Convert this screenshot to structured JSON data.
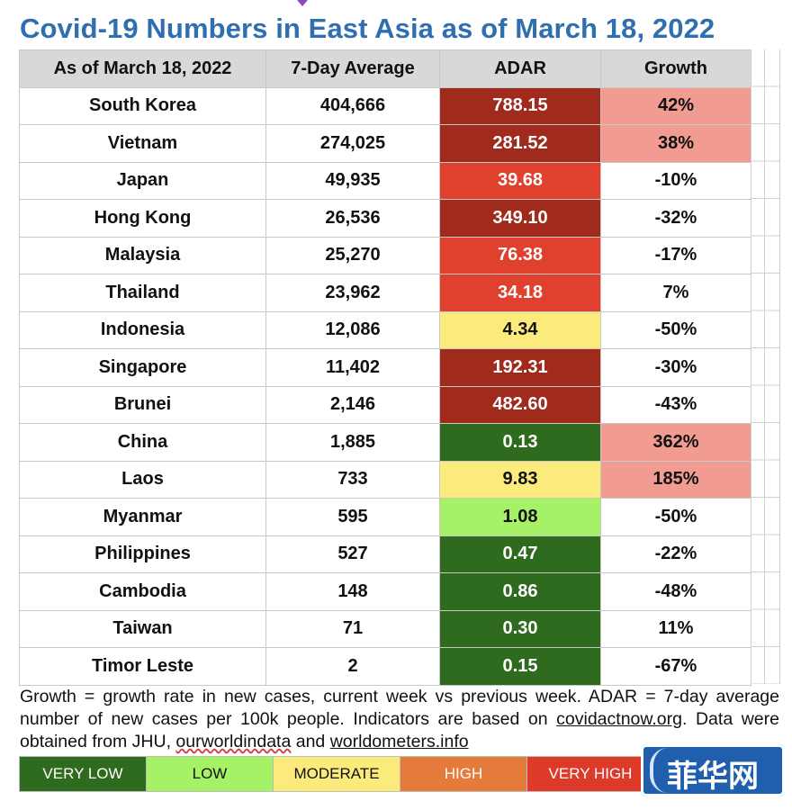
{
  "title": "Covid-19 Numbers in East Asia as of March 18, 2022",
  "table": {
    "headers": [
      "As of March 18, 2022",
      "7-Day Average",
      "ADAR",
      "Growth"
    ],
    "rows": [
      {
        "country": "South Korea",
        "avg": "404,666",
        "adar": "788.15",
        "growth": "42%"
      },
      {
        "country": "Vietnam",
        "avg": "274,025",
        "adar": "281.52",
        "growth": "38%"
      },
      {
        "country": "Japan",
        "avg": "49,935",
        "adar": "39.68",
        "growth": "-10%"
      },
      {
        "country": "Hong Kong",
        "avg": "26,536",
        "adar": "349.10",
        "growth": "-32%"
      },
      {
        "country": "Malaysia",
        "avg": "25,270",
        "adar": "76.38",
        "growth": "-17%"
      },
      {
        "country": "Thailand",
        "avg": "23,962",
        "adar": "34.18",
        "growth": "7%"
      },
      {
        "country": "Indonesia",
        "avg": "12,086",
        "adar": "4.34",
        "growth": "-50%"
      },
      {
        "country": "Singapore",
        "avg": "11,402",
        "adar": "192.31",
        "growth": "-30%"
      },
      {
        "country": "Brunei",
        "avg": "2,146",
        "adar": "482.60",
        "growth": "-43%"
      },
      {
        "country": "China",
        "avg": "1,885",
        "adar": "0.13",
        "growth": "362%"
      },
      {
        "country": "Laos",
        "avg": "733",
        "adar": "9.83",
        "growth": "185%"
      },
      {
        "country": "Myanmar",
        "avg": "595",
        "adar": "1.08",
        "growth": "-50%"
      },
      {
        "country": "Philippines",
        "avg": "527",
        "adar": "0.47",
        "growth": "-22%"
      },
      {
        "country": "Cambodia",
        "avg": "148",
        "adar": "0.86",
        "growth": "-48%"
      },
      {
        "country": "Taiwan",
        "avg": "71",
        "adar": "0.30",
        "growth": "11%"
      },
      {
        "country": "Timor Leste",
        "avg": "2",
        "adar": "0.15",
        "growth": "-67%"
      }
    ]
  },
  "colors": {
    "title": "#2f6fb0",
    "header_bg": "#d8d8d8",
    "adar_very_high": "#a02a1c",
    "adar_high": "#e0402e",
    "adar_moderate": "#fbeb7d",
    "adar_low": "#a6f266",
    "adar_very_low": "#2e6b1f",
    "growth_high": "#f29b91",
    "legend_very_low": "#2e6b1f",
    "legend_low": "#a6f266",
    "legend_moderate": "#fbeb7d",
    "legend_high": "#e47b3b",
    "legend_very_high": "#dd3a2a"
  },
  "footnote": {
    "part1": "Growth = growth rate in new cases, current week vs previous week. ADAR = 7-day average number of new cases per 100k people. Indicators are based on ",
    "link1": "covidactnow.org",
    "part2": ". Data were obtained from JHU, ",
    "link2": "ourworldindata",
    "part3": " and ",
    "link3": "worldometers.info"
  },
  "legend": [
    "VERY LOW",
    "LOW",
    "MODERATE",
    "HIGH",
    "VERY HIGH"
  ],
  "logo": {
    "text": "菲华网",
    "icon": "logo-mark-icon"
  }
}
